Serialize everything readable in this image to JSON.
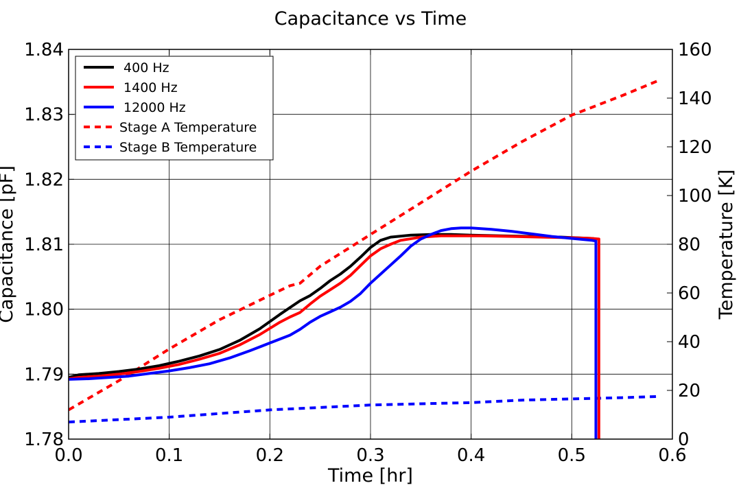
{
  "chart_data": {
    "type": "line",
    "title": "Capacitance vs Time",
    "xlabel": "Time [hr]",
    "ylabel": "Capacitance [pF]",
    "y2label": "Temperature [K]",
    "xlim": [
      0.0,
      0.6
    ],
    "ylim": [
      1.78,
      1.84
    ],
    "y2lim": [
      0,
      160
    ],
    "xticks": [
      "0.0",
      "0.1",
      "0.2",
      "0.3",
      "0.4",
      "0.5",
      "0.6"
    ],
    "yticks": [
      "1.78",
      "1.79",
      "1.80",
      "1.81",
      "1.82",
      "1.83",
      "1.84"
    ],
    "y2ticks": [
      "0",
      "20",
      "40",
      "60",
      "80",
      "100",
      "120",
      "140",
      "160"
    ],
    "grid": true,
    "legend_position": "top-left",
    "series": [
      {
        "name": " 400 Hz",
        "axis": "left",
        "color": "#000000",
        "style": "solid",
        "x": [
          0.0,
          0.01,
          0.03,
          0.05,
          0.07,
          0.09,
          0.11,
          0.13,
          0.15,
          0.17,
          0.19,
          0.21,
          0.23,
          0.24,
          0.25,
          0.26,
          0.27,
          0.28,
          0.29,
          0.3,
          0.31,
          0.32,
          0.34,
          0.36,
          0.38,
          0.4,
          0.43,
          0.46,
          0.49,
          0.52,
          0.524,
          0.524
        ],
        "y": [
          1.7895,
          1.7899,
          1.7901,
          1.7904,
          1.7908,
          1.7913,
          1.792,
          1.7928,
          1.7938,
          1.7952,
          1.797,
          1.7992,
          1.8013,
          1.8021,
          1.8032,
          1.8044,
          1.8054,
          1.8066,
          1.808,
          1.8095,
          1.8106,
          1.8111,
          1.8114,
          1.8115,
          1.8115,
          1.8114,
          1.8113,
          1.8112,
          1.8111,
          1.8109,
          1.8108,
          1.778
        ]
      },
      {
        "name": " 1400 Hz",
        "axis": "left",
        "color": "#ff0000",
        "style": "solid",
        "x": [
          0.0,
          0.01,
          0.03,
          0.05,
          0.07,
          0.09,
          0.11,
          0.13,
          0.15,
          0.17,
          0.19,
          0.21,
          0.22,
          0.23,
          0.24,
          0.25,
          0.26,
          0.27,
          0.28,
          0.29,
          0.3,
          0.31,
          0.32,
          0.33,
          0.35,
          0.37,
          0.39,
          0.41,
          0.44,
          0.47,
          0.5,
          0.52,
          0.527,
          0.527
        ],
        "y": [
          1.7893,
          1.7895,
          1.7897,
          1.79,
          1.7904,
          1.7909,
          1.7915,
          1.7923,
          1.7932,
          1.7945,
          1.7961,
          1.798,
          1.7988,
          1.7995,
          1.8008,
          1.802,
          1.803,
          1.804,
          1.8052,
          1.8067,
          1.8082,
          1.8093,
          1.81,
          1.8106,
          1.8111,
          1.8113,
          1.8113,
          1.8113,
          1.8112,
          1.8111,
          1.811,
          1.8109,
          1.8108,
          1.778
        ]
      },
      {
        "name": " 12000 Hz",
        "axis": "left",
        "color": "#0000ff",
        "style": "solid",
        "x": [
          0.0,
          0.02,
          0.04,
          0.06,
          0.08,
          0.1,
          0.12,
          0.14,
          0.16,
          0.18,
          0.2,
          0.22,
          0.23,
          0.24,
          0.25,
          0.26,
          0.27,
          0.28,
          0.29,
          0.3,
          0.31,
          0.32,
          0.33,
          0.34,
          0.35,
          0.36,
          0.37,
          0.38,
          0.39,
          0.4,
          0.42,
          0.44,
          0.46,
          0.48,
          0.5,
          0.52,
          0.524,
          0.524
        ],
        "y": [
          1.7892,
          1.7893,
          1.7895,
          1.7897,
          1.7901,
          1.7905,
          1.791,
          1.7916,
          1.7925,
          1.7936,
          1.7948,
          1.796,
          1.7969,
          1.798,
          1.7989,
          1.7996,
          1.8003,
          1.8012,
          1.8024,
          1.804,
          1.8054,
          1.8068,
          1.8082,
          1.8097,
          1.8108,
          1.8115,
          1.8121,
          1.8124,
          1.8125,
          1.8125,
          1.8123,
          1.812,
          1.8116,
          1.8112,
          1.8109,
          1.8106,
          1.8105,
          1.778
        ]
      },
      {
        "name": "Stage A Temperature",
        "axis": "right",
        "color": "#ff0000",
        "style": "dashed",
        "x": [
          0.0,
          0.05,
          0.1,
          0.15,
          0.2,
          0.22,
          0.23,
          0.25,
          0.3,
          0.35,
          0.4,
          0.45,
          0.5,
          0.55,
          0.585
        ],
        "y": [
          12,
          24,
          37,
          49,
          59,
          63,
          64,
          71,
          84,
          97,
          110,
          122,
          133,
          141,
          147
        ]
      },
      {
        "name": "Stage B Temperature",
        "axis": "right",
        "color": "#0000ff",
        "style": "dashed",
        "x": [
          0.0,
          0.05,
          0.1,
          0.15,
          0.2,
          0.25,
          0.3,
          0.35,
          0.4,
          0.45,
          0.5,
          0.55,
          0.585
        ],
        "y": [
          7,
          8,
          9,
          10.5,
          12,
          13,
          14,
          14.5,
          15,
          16,
          16.5,
          17,
          17.5
        ]
      }
    ]
  }
}
